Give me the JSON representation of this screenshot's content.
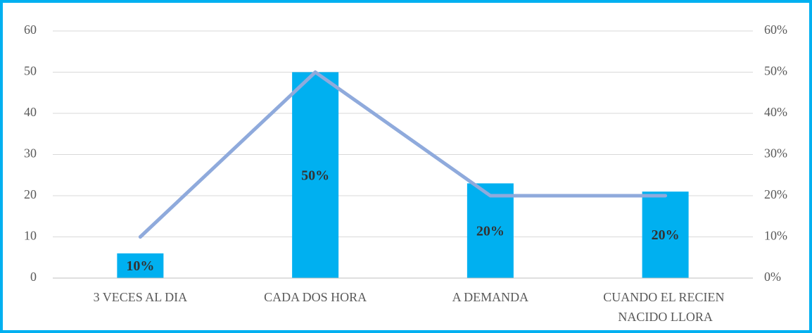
{
  "chart_data": {
    "type": "bar",
    "categories": [
      "3 VECES AL DIA",
      "CADA DOS HORA",
      "A DEMANDA",
      "CUANDO EL RECIEN NACIDO LLORA"
    ],
    "series": [
      {
        "type": "bar",
        "color": "#00b0f0",
        "values": [
          6,
          50,
          23,
          21
        ]
      },
      {
        "type": "line",
        "axis": "y2",
        "color": "#8faadc",
        "values": [
          10,
          50,
          20,
          20
        ],
        "value_labels": [
          "10%",
          "50%",
          "20%",
          "20%"
        ]
      }
    ],
    "ylim": [
      0,
      60
    ],
    "yticks": [
      0,
      10,
      20,
      30,
      40,
      50,
      60
    ],
    "y2lim": [
      0,
      60
    ],
    "y2ticks": [
      {
        "value": 0,
        "label": "0%"
      },
      {
        "value": 10,
        "label": "10%"
      },
      {
        "value": 20,
        "label": "20%"
      },
      {
        "value": 30,
        "label": "30%"
      },
      {
        "value": 40,
        "label": "40%"
      },
      {
        "value": 50,
        "label": "50%"
      },
      {
        "value": 60,
        "label": "60%"
      }
    ],
    "grid": true
  }
}
